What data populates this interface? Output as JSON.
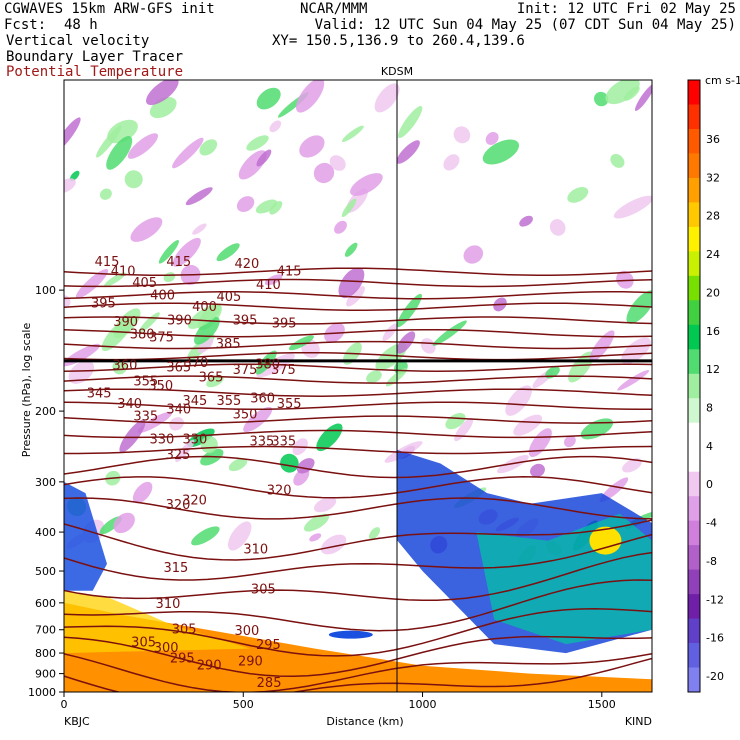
{
  "header": {
    "model": "CGWAVES 15km ARW-GFS init",
    "org": "NCAR/MMM",
    "init": "Init: 12 UTC Fri 02 May 25",
    "fcst_label": "Fcst:",
    "fcst_value": "48 h",
    "valid": "Valid: 12 UTC Sun 04 May 25 (07 CDT Sun 04 May 25)",
    "xy": "XY= 150.5,136.9 to 260.4,139.6",
    "field1": "Vertical velocity",
    "field2": "Boundary Layer Tracer",
    "field3": "Potential Temperature",
    "field3_color": "#a01818"
  },
  "station_mid": "KDSM",
  "station_left": "KBJC",
  "station_right": "KIND",
  "chart_data": {
    "type": "heatmap",
    "xlabel": "Distance (km)",
    "ylabel": "Pressure (hPa), log scale",
    "xlim": [
      0,
      1640
    ],
    "ylim": [
      1000,
      30
    ],
    "yscale": "log",
    "x_ticks": [
      0,
      500,
      1000,
      1500
    ],
    "y_ticks": [
      100,
      200,
      300,
      400,
      500,
      600,
      700,
      800,
      900,
      1000
    ],
    "marker_line_x": 925,
    "colorbar": {
      "unit": "cm s-1",
      "labels": [
        36,
        32,
        28,
        24,
        20,
        16,
        12,
        8,
        4,
        0,
        -4,
        -8,
        -12,
        -16,
        -20
      ],
      "colors": [
        "#ff0000",
        "#ff3000",
        "#ff5a00",
        "#ff7800",
        "#ffa000",
        "#ffc800",
        "#fff000",
        "#c8f000",
        "#78e000",
        "#40d040",
        "#00c850",
        "#50dc70",
        "#a0eea0",
        "#d0f8d0",
        "#ffffff",
        "#ffffff",
        "#f0c8f0",
        "#e0a0e8",
        "#d080dc",
        "#b060c8",
        "#9040b8",
        "#7020a8",
        "#6040c8",
        "#6060e0",
        "#8080f0"
      ]
    },
    "theta_labels": [
      {
        "v": 415,
        "x": 120,
        "p": 85
      },
      {
        "v": 410,
        "x": 165,
        "p": 90
      },
      {
        "v": 405,
        "x": 225,
        "p": 96
      },
      {
        "v": 400,
        "x": 275,
        "p": 103
      },
      {
        "v": 415,
        "x": 320,
        "p": 85
      },
      {
        "v": 420,
        "x": 510,
        "p": 86
      },
      {
        "v": 410,
        "x": 570,
        "p": 97
      },
      {
        "v": 415,
        "x": 628,
        "p": 90
      },
      {
        "v": 395,
        "x": 110,
        "p": 108
      },
      {
        "v": 390,
        "x": 172,
        "p": 120
      },
      {
        "v": 380,
        "x": 218,
        "p": 129
      },
      {
        "v": 375,
        "x": 272,
        "p": 131
      },
      {
        "v": 390,
        "x": 322,
        "p": 119
      },
      {
        "v": 400,
        "x": 392,
        "p": 110
      },
      {
        "v": 405,
        "x": 460,
        "p": 104
      },
      {
        "v": 395,
        "x": 505,
        "p": 119
      },
      {
        "v": 395,
        "x": 614,
        "p": 121
      },
      {
        "v": 385,
        "x": 458,
        "p": 136
      },
      {
        "v": 360,
        "x": 170,
        "p": 154
      },
      {
        "v": 355,
        "x": 228,
        "p": 169
      },
      {
        "v": 350,
        "x": 270,
        "p": 173
      },
      {
        "v": 365,
        "x": 320,
        "p": 156
      },
      {
        "v": 370,
        "x": 368,
        "p": 152
      },
      {
        "v": 365,
        "x": 410,
        "p": 165
      },
      {
        "v": 375,
        "x": 505,
        "p": 158
      },
      {
        "v": 380,
        "x": 568,
        "p": 153
      },
      {
        "v": 375,
        "x": 612,
        "p": 158
      },
      {
        "v": 345,
        "x": 98,
        "p": 181
      },
      {
        "v": 340,
        "x": 183,
        "p": 192
      },
      {
        "v": 335,
        "x": 228,
        "p": 206
      },
      {
        "v": 340,
        "x": 320,
        "p": 198
      },
      {
        "v": 345,
        "x": 365,
        "p": 189
      },
      {
        "v": 355,
        "x": 460,
        "p": 189
      },
      {
        "v": 350,
        "x": 505,
        "p": 204
      },
      {
        "v": 360,
        "x": 554,
        "p": 186
      },
      {
        "v": 355,
        "x": 628,
        "p": 192
      },
      {
        "v": 330,
        "x": 273,
        "p": 235
      },
      {
        "v": 330,
        "x": 365,
        "p": 235
      },
      {
        "v": 325,
        "x": 318,
        "p": 257
      },
      {
        "v": 335,
        "x": 552,
        "p": 238
      },
      {
        "v": 335,
        "x": 613,
        "p": 238
      },
      {
        "v": 320,
        "x": 318,
        "p": 343
      },
      {
        "v": 320,
        "x": 364,
        "p": 334
      },
      {
        "v": 320,
        "x": 600,
        "p": 315
      },
      {
        "v": 310,
        "x": 535,
        "p": 442
      },
      {
        "v": 305,
        "x": 556,
        "p": 556
      },
      {
        "v": 315,
        "x": 312,
        "p": 492
      },
      {
        "v": 310,
        "x": 290,
        "p": 604
      },
      {
        "v": 305,
        "x": 335,
        "p": 700
      },
      {
        "v": 305,
        "x": 222,
        "p": 752
      },
      {
        "v": 300,
        "x": 285,
        "p": 778
      },
      {
        "v": 295,
        "x": 330,
        "p": 826
      },
      {
        "v": 290,
        "x": 405,
        "p": 860
      },
      {
        "v": 300,
        "x": 510,
        "p": 706
      },
      {
        "v": 295,
        "x": 570,
        "p": 763
      },
      {
        "v": 290,
        "x": 520,
        "p": 840
      },
      {
        "v": 285,
        "x": 572,
        "p": 950
      }
    ]
  }
}
